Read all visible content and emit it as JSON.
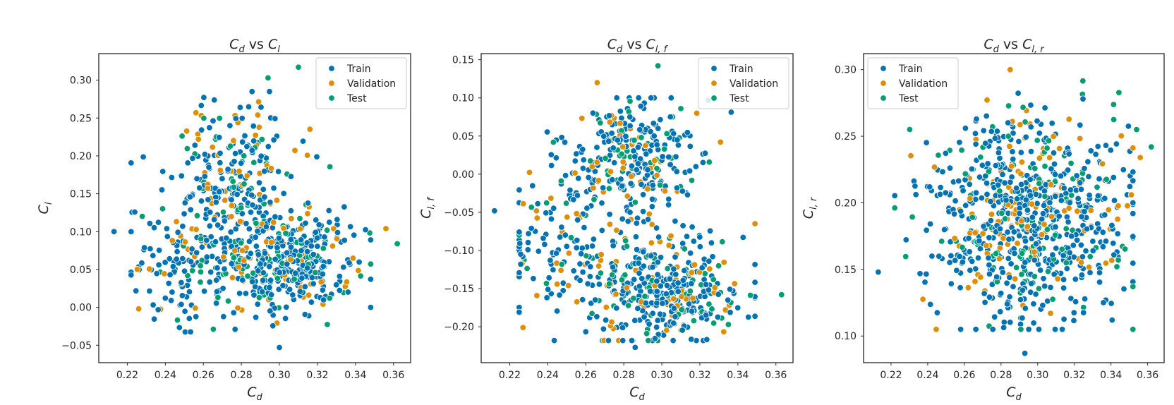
{
  "colors": {
    "Train": "#0173b2",
    "Validation": "#de8f05",
    "Test": "#029e73"
  },
  "legend": [
    "Train",
    "Validation",
    "Test"
  ],
  "chart_data": [
    {
      "type": "scatter",
      "title_main": "C",
      "title_sub": "d",
      "title_mid": " vs ",
      "title_main2": "C",
      "title_sub2": "l",
      "xlabel_main": "C",
      "xlabel_sub": "d",
      "ylabel_main": "C",
      "ylabel_sub": "l",
      "xlim": [
        0.205,
        0.369
      ],
      "ylim": [
        -0.073,
        0.335
      ],
      "xticks": [
        "0.22",
        "0.24",
        "0.26",
        "0.28",
        "0.30",
        "0.32",
        "0.34",
        "0.36"
      ],
      "yticks": [
        "−0.05",
        "0.00",
        "0.05",
        "0.10",
        "0.15",
        "0.20",
        "0.25",
        "0.30"
      ],
      "xtick_values": [
        0.22,
        0.24,
        0.26,
        0.28,
        0.3,
        0.32,
        0.34,
        0.36
      ],
      "ytick_values": [
        -0.05,
        0.0,
        0.05,
        0.1,
        0.15,
        0.2,
        0.25,
        0.3
      ],
      "legend_position": "upper right",
      "seed": 11,
      "y_mode": "cl",
      "series": [
        {
          "name": "Train",
          "n": 560
        },
        {
          "name": "Validation",
          "n": 120
        },
        {
          "name": "Test",
          "n": 120
        }
      ],
      "outliers": [
        {
          "series": "Test",
          "x": 0.31,
          "y": 0.317
        },
        {
          "series": "Test",
          "x": 0.294,
          "y": 0.303
        },
        {
          "series": "Train",
          "x": 0.213,
          "y": 0.1
        },
        {
          "series": "Test",
          "x": 0.362,
          "y": 0.084
        },
        {
          "series": "Validation",
          "x": 0.226,
          "y": -0.002
        },
        {
          "series": "Train",
          "x": 0.3,
          "y": -0.053
        },
        {
          "series": "Validation",
          "x": 0.356,
          "y": 0.104
        }
      ]
    },
    {
      "type": "scatter",
      "title_main": "C",
      "title_sub": "d",
      "title_mid": " vs ",
      "title_main2": "C",
      "title_sub2": "l, f",
      "xlabel_main": "C",
      "xlabel_sub": "d",
      "ylabel_main": "C",
      "ylabel_sub": "l, f",
      "xlim": [
        0.205,
        0.369
      ],
      "ylim": [
        -0.247,
        0.158
      ],
      "xticks": [
        "0.22",
        "0.24",
        "0.26",
        "0.28",
        "0.30",
        "0.32",
        "0.34",
        "0.36"
      ],
      "yticks": [
        "−0.20",
        "−0.15",
        "−0.10",
        "−0.05",
        "0.00",
        "0.05",
        "0.10",
        "0.15"
      ],
      "xtick_values": [
        0.22,
        0.24,
        0.26,
        0.28,
        0.3,
        0.32,
        0.34,
        0.36
      ],
      "ytick_values": [
        -0.2,
        -0.15,
        -0.1,
        -0.05,
        0.0,
        0.05,
        0.1,
        0.15
      ],
      "legend_position": "upper right",
      "seed": 23,
      "y_mode": "clf",
      "series": [
        {
          "name": "Train",
          "n": 560
        },
        {
          "name": "Validation",
          "n": 120
        },
        {
          "name": "Test",
          "n": 120
        }
      ],
      "outliers": [
        {
          "series": "Test",
          "x": 0.298,
          "y": 0.142
        },
        {
          "series": "Validation",
          "x": 0.266,
          "y": 0.12
        },
        {
          "series": "Train",
          "x": 0.212,
          "y": -0.048
        },
        {
          "series": "Test",
          "x": 0.363,
          "y": -0.158
        },
        {
          "series": "Validation",
          "x": 0.227,
          "y": -0.201
        },
        {
          "series": "Train",
          "x": 0.286,
          "y": -0.227
        },
        {
          "series": "Test",
          "x": 0.31,
          "y": 0.086
        }
      ]
    },
    {
      "type": "scatter",
      "title_main": "C",
      "title_sub": "d",
      "title_mid": " vs ",
      "title_main2": "C",
      "title_sub2": "l, r",
      "xlabel_main": "C",
      "xlabel_sub": "d",
      "ylabel_main": "C",
      "ylabel_sub": "l, r",
      "xlim": [
        0.205,
        0.369
      ],
      "ylim": [
        0.08,
        0.312
      ],
      "xticks": [
        "0.22",
        "0.24",
        "0.26",
        "0.28",
        "0.30",
        "0.32",
        "0.34",
        "0.36"
      ],
      "yticks": [
        "0.10",
        "0.15",
        "0.20",
        "0.25",
        "0.30"
      ],
      "xtick_values": [
        0.22,
        0.24,
        0.26,
        0.28,
        0.3,
        0.32,
        0.34,
        0.36
      ],
      "ytick_values": [
        0.1,
        0.15,
        0.2,
        0.25,
        0.3
      ],
      "legend_position": "upper left",
      "seed": 37,
      "y_mode": "clr",
      "series": [
        {
          "name": "Train",
          "n": 560
        },
        {
          "name": "Validation",
          "n": 120
        },
        {
          "name": "Test",
          "n": 120
        }
      ],
      "outliers": [
        {
          "series": "Train",
          "x": 0.293,
          "y": 0.087
        },
        {
          "series": "Train",
          "x": 0.213,
          "y": 0.148
        },
        {
          "series": "Test",
          "x": 0.362,
          "y": 0.242
        },
        {
          "series": "Validation",
          "x": 0.285,
          "y": 0.3
        },
        {
          "series": "Test",
          "x": 0.354,
          "y": 0.255
        },
        {
          "series": "Validation",
          "x": 0.356,
          "y": 0.234
        }
      ]
    }
  ]
}
